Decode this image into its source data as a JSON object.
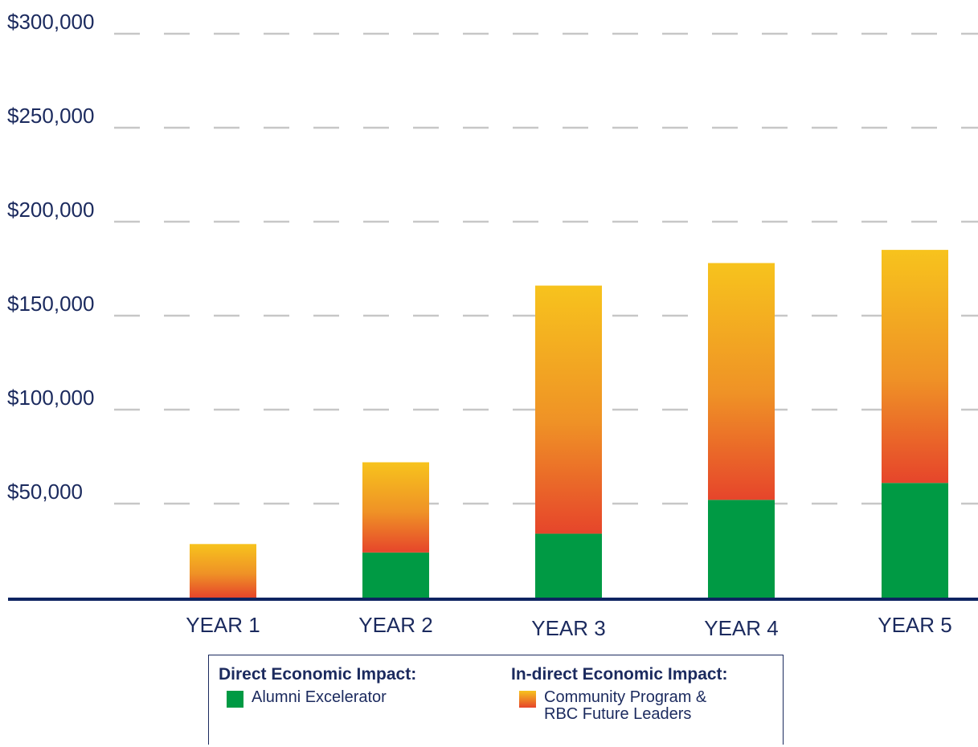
{
  "chart_data": {
    "type": "bar",
    "stacked": true,
    "categories": [
      "YEAR 1",
      "YEAR 2",
      "YEAR 3",
      "YEAR 4",
      "YEAR 5"
    ],
    "series": [
      {
        "name": "Alumni Excelerator",
        "group": "Direct Economic Impact:",
        "color": "#009a44",
        "values": [
          0,
          24000,
          34000,
          52000,
          61000
        ]
      },
      {
        "name": "Community Program & RBC Future Leaders",
        "group": "In-direct Economic Impact:",
        "color_top": "#f7c31d",
        "color_bottom": "#e6452b",
        "values": [
          28500,
          48000,
          132000,
          126000,
          124000
        ]
      }
    ],
    "y_ticks": [
      "$50,000",
      "$100,000",
      "$150,000",
      "$200,000",
      "$250,000",
      "$300,000"
    ],
    "y_tick_values": [
      50000,
      100000,
      150000,
      200000,
      250000,
      300000
    ],
    "ylim": [
      0,
      300000
    ],
    "grid": true,
    "legend_position": "bottom"
  },
  "legend": {
    "direct": {
      "title": "Direct Economic Impact:",
      "label": "Alumni Excelerator"
    },
    "indirect": {
      "title": "In-direct Economic Impact:",
      "label": "Community Program &\nRBC Future Leaders"
    }
  },
  "colors": {
    "axis": "#0e2461",
    "text": "#1b2a5e",
    "grid": "#c7c7c7",
    "direct": "#009a44",
    "indirect_top": "#f7c31d",
    "indirect_bottom": "#e6452b"
  }
}
